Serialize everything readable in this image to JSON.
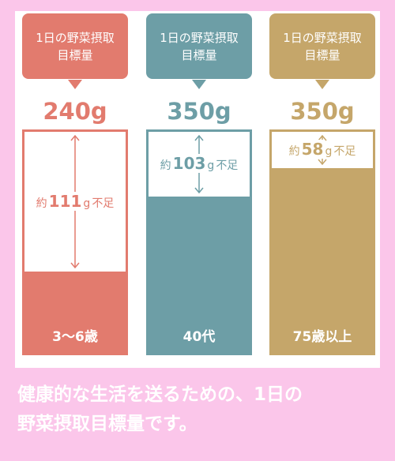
{
  "chart_data": {
    "type": "bar",
    "callout": [
      "1日の野菜摂取",
      "目標量"
    ],
    "unit": "g",
    "shortage_prefix": "約",
    "shortage_suffix": "不足",
    "columns": [
      {
        "age_group": "3〜6歳",
        "target_g": 240,
        "shortage_g": 111,
        "target_text": "240g",
        "shortage_value": "111",
        "color": "#e27b6e"
      },
      {
        "age_group": "40代",
        "target_g": 350,
        "shortage_g": 103,
        "target_text": "350g",
        "shortage_value": "103",
        "color": "#6d9ea6"
      },
      {
        "age_group": "75歳以上",
        "target_g": 350,
        "shortage_g": 58,
        "target_text": "350g",
        "shortage_value": "58",
        "color": "#c5a66a"
      }
    ]
  },
  "caption": [
    "健康的な生活を送るための、1日の",
    "野菜摂取目標量です。"
  ]
}
